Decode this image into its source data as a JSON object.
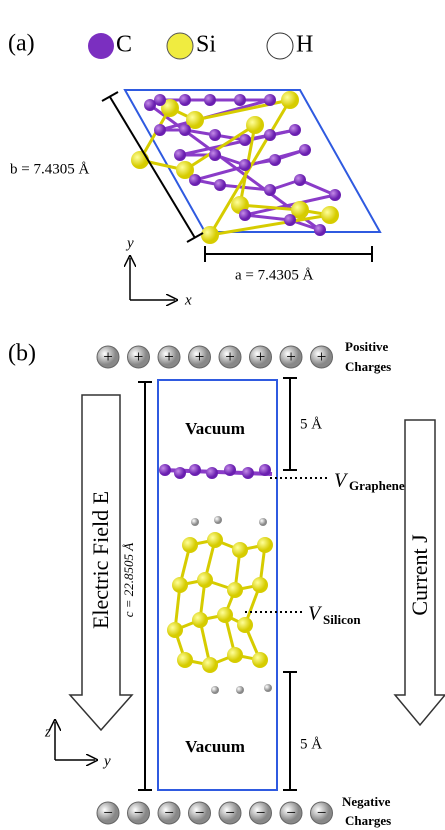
{
  "panel_a": {
    "label": "(a)",
    "legend": [
      {
        "label": "C"
      },
      {
        "label": "Si"
      },
      {
        "label": "H"
      }
    ],
    "b_label": "b = 7.4305 Å",
    "a_label": "a = 7.4305 Å",
    "axis_y": "y",
    "axis_x": "x"
  },
  "panel_b": {
    "label": "(b)",
    "positive_symbol": "+",
    "negative_symbol": "−",
    "positive_label": [
      "Positive",
      "Charges"
    ],
    "negative_label": [
      "Negative",
      "Charges"
    ],
    "vacuum_top": "Vacuum",
    "vacuum_bottom": "Vacuum",
    "gap_top": "5 Å",
    "gap_bottom": "5 Å",
    "c_label": "c = 22.8505 Å",
    "field_label": "Electric Field E",
    "current_label": "Current J",
    "v_graphene": {
      "symbol": "V",
      "subscript": "Graphene"
    },
    "v_silicon": {
      "symbol": "V",
      "subscript": "Silicon"
    },
    "axis_z": "z",
    "axis_y": "y"
  }
}
